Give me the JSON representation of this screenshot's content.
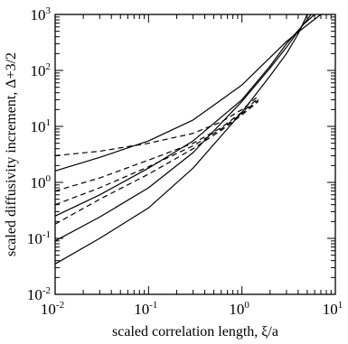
{
  "chart_data": {
    "type": "line",
    "title": "",
    "xlabel": "scaled correlation length, ξ/a",
    "ylabel": "scaled diffusivity increment, Δ+3/2",
    "xscale": "log",
    "yscale": "log",
    "xlim": [
      0.01,
      10
    ],
    "ylim": [
      0.01,
      1000
    ],
    "grid": false,
    "legend": "none",
    "x_ticks": [
      {
        "value": 0.01,
        "base": "10",
        "exp": "-2"
      },
      {
        "value": 0.1,
        "base": "10",
        "exp": "-1"
      },
      {
        "value": 1,
        "base": "10",
        "exp": "0"
      },
      {
        "value": 10,
        "base": "10",
        "exp": "1"
      }
    ],
    "y_ticks": [
      {
        "value": 0.01,
        "base": "10",
        "exp": "-2"
      },
      {
        "value": 0.1,
        "base": "10",
        "exp": "-1"
      },
      {
        "value": 1,
        "base": "10",
        "exp": "0"
      },
      {
        "value": 10,
        "base": "10",
        "exp": "1"
      },
      {
        "value": 100,
        "base": "10",
        "exp": "2"
      },
      {
        "value": 1000,
        "base": "10",
        "exp": "3"
      }
    ],
    "series": [
      {
        "style": "solid",
        "x": [
          0.01,
          0.03,
          0.1,
          0.3,
          1,
          2,
          3,
          5,
          7
        ],
        "y": [
          1.6,
          2.8,
          5.5,
          13,
          55,
          170,
          330,
          650,
          1000
        ]
      },
      {
        "style": "solid",
        "x": [
          0.01,
          0.03,
          0.1,
          0.3,
          1,
          2,
          3,
          4.5,
          6
        ],
        "y": [
          0.25,
          0.6,
          1.8,
          5.5,
          30,
          120,
          300,
          650,
          1000
        ]
      },
      {
        "style": "solid",
        "x": [
          0.01,
          0.03,
          0.1,
          0.3,
          1,
          2,
          3,
          4,
          5.5
        ],
        "y": [
          0.09,
          0.24,
          0.8,
          3.4,
          28,
          110,
          260,
          500,
          1000
        ]
      },
      {
        "style": "solid",
        "x": [
          0.01,
          0.03,
          0.1,
          0.3,
          1,
          2,
          3,
          4,
          5
        ],
        "y": [
          0.035,
          0.1,
          0.35,
          1.8,
          18,
          80,
          200,
          450,
          1000
        ]
      },
      {
        "style": "dashed",
        "x": [
          0.01,
          0.03,
          0.1,
          0.3,
          0.6,
          1,
          1.5
        ],
        "y": [
          3.0,
          3.6,
          5.0,
          7.5,
          12,
          20,
          35
        ]
      },
      {
        "style": "dashed",
        "x": [
          0.01,
          0.03,
          0.1,
          0.3,
          0.6,
          1,
          1.5
        ],
        "y": [
          0.7,
          1.2,
          2.5,
          5.0,
          9.5,
          18,
          32
        ]
      },
      {
        "style": "dashed",
        "x": [
          0.01,
          0.03,
          0.1,
          0.3,
          0.6,
          1,
          1.5
        ],
        "y": [
          0.4,
          0.8,
          1.9,
          4.5,
          9.0,
          17,
          30
        ]
      },
      {
        "style": "dashed",
        "x": [
          0.01,
          0.03,
          0.1,
          0.3,
          0.6,
          1,
          1.5
        ],
        "y": [
          0.18,
          0.5,
          1.4,
          4.0,
          8.5,
          16,
          28
        ]
      }
    ]
  }
}
